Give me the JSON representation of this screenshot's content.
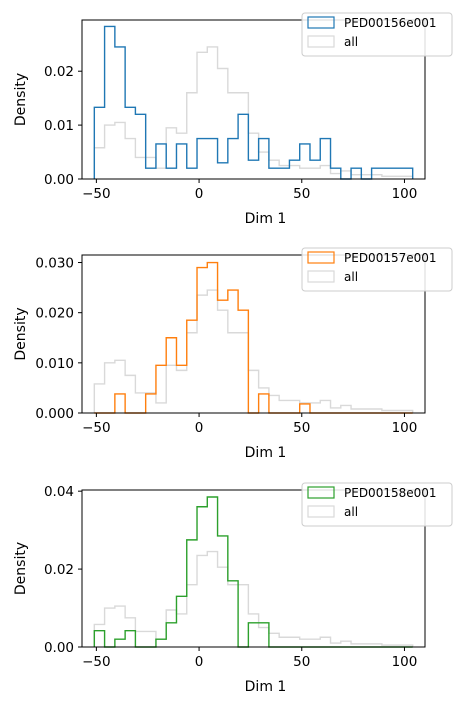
{
  "chart_data": [
    {
      "type": "histogram",
      "xlabel": "Dim 1",
      "ylabel": "Density",
      "xlim": [
        -57,
        110
      ],
      "ylim": [
        0,
        0.0295
      ],
      "xticks": [
        -50,
        0,
        50,
        100
      ],
      "yticks": [
        0.0,
        0.01,
        0.02
      ],
      "ytick_labels": [
        "0.00",
        "0.01",
        "0.02"
      ],
      "legend_loc": "upper-right",
      "series": [
        {
          "name": "PED00156e001",
          "color": "#1f77b4",
          "edges": [
            -51,
            -46,
            -41,
            -36,
            -31,
            -26,
            -21,
            -16,
            -11,
            -6,
            -1,
            4,
            9,
            14,
            19,
            24,
            29,
            34,
            39,
            44,
            49,
            54,
            59,
            64,
            69,
            74,
            79,
            84,
            89,
            94,
            99,
            104
          ],
          "values": [
            0.0133,
            0.0283,
            0.0245,
            0.0133,
            0.012,
            0.002,
            0.0065,
            0.002,
            0.0065,
            0.002,
            0.0075,
            0.0075,
            0.003,
            0.0075,
            0.012,
            0.0035,
            0.0075,
            0.002,
            0.002,
            0.0035,
            0.0065,
            0.0035,
            0.0075,
            0.002,
            0.0,
            0.002,
            0.0,
            0.002,
            0.002,
            0.002,
            0.002
          ]
        },
        {
          "name": "all",
          "color": "#d9d9d9",
          "edges": [
            -51,
            -46,
            -41,
            -36,
            -31,
            -26,
            -21,
            -16,
            -11,
            -6,
            -1,
            4,
            9,
            14,
            19,
            24,
            29,
            34,
            39,
            44,
            49,
            54,
            59,
            64,
            69,
            74,
            79,
            84,
            89,
            94,
            99,
            104
          ],
          "values": [
            0.0058,
            0.01,
            0.0105,
            0.0075,
            0.004,
            0.004,
            0.002,
            0.0095,
            0.0085,
            0.016,
            0.0235,
            0.0245,
            0.0205,
            0.016,
            0.016,
            0.0085,
            0.005,
            0.0035,
            0.0025,
            0.0025,
            0.002,
            0.002,
            0.0025,
            0.001,
            0.0015,
            0.0008,
            0.0008,
            0.0008,
            0.0005,
            0.0005,
            0.0005
          ]
        }
      ]
    },
    {
      "type": "histogram",
      "xlabel": "Dim 1",
      "ylabel": "Density",
      "xlim": [
        -57,
        110
      ],
      "ylim": [
        0,
        0.0315
      ],
      "xticks": [
        -50,
        0,
        50,
        100
      ],
      "yticks": [
        0.0,
        0.01,
        0.02,
        0.03
      ],
      "ytick_labels": [
        "0.000",
        "0.010",
        "0.020",
        "0.030"
      ],
      "legend_loc": "upper-right",
      "series": [
        {
          "name": "PED00157e001",
          "color": "#ff7f0e",
          "edges": [
            -51,
            -46,
            -41,
            -36,
            -31,
            -26,
            -21,
            -16,
            -11,
            -6,
            -1,
            4,
            9,
            14,
            19,
            24,
            29,
            34,
            39,
            44,
            49,
            54,
            59,
            64,
            69,
            74,
            79,
            84,
            89,
            94,
            99,
            104
          ],
          "values": [
            0.0,
            0.0,
            0.0038,
            0.0,
            0.0,
            0.0038,
            0.0095,
            0.015,
            0.0095,
            0.0185,
            0.029,
            0.03,
            0.0225,
            0.0245,
            0.0205,
            0.0,
            0.0038,
            0.0,
            0.0,
            0.0,
            0.0018,
            0.0,
            0.0,
            0.0,
            0.0,
            0.0,
            0.0,
            0.0,
            0.0,
            0.0,
            0.0
          ]
        },
        {
          "name": "all",
          "color": "#d9d9d9",
          "edges": [
            -51,
            -46,
            -41,
            -36,
            -31,
            -26,
            -21,
            -16,
            -11,
            -6,
            -1,
            4,
            9,
            14,
            19,
            24,
            29,
            34,
            39,
            44,
            49,
            54,
            59,
            64,
            69,
            74,
            79,
            84,
            89,
            94,
            99,
            104
          ],
          "values": [
            0.0058,
            0.01,
            0.0105,
            0.0075,
            0.004,
            0.004,
            0.002,
            0.0095,
            0.0085,
            0.016,
            0.0235,
            0.0245,
            0.0205,
            0.016,
            0.016,
            0.0085,
            0.005,
            0.0035,
            0.0025,
            0.0025,
            0.002,
            0.002,
            0.0025,
            0.001,
            0.0015,
            0.0008,
            0.0008,
            0.0008,
            0.0005,
            0.0005,
            0.0005
          ]
        }
      ]
    },
    {
      "type": "histogram",
      "xlabel": "Dim 1",
      "ylabel": "Density",
      "xlim": [
        -57,
        110
      ],
      "ylim": [
        0,
        0.0403
      ],
      "xticks": [
        -50,
        0,
        50,
        100
      ],
      "yticks": [
        0.0,
        0.02,
        0.04
      ],
      "ytick_labels": [
        "0.00",
        "0.02",
        "0.04"
      ],
      "legend_loc": "upper-right",
      "series": [
        {
          "name": "PED00158e001",
          "color": "#2ca02c",
          "edges": [
            -51,
            -46,
            -41,
            -36,
            -31,
            -26,
            -21,
            -16,
            -11,
            -6,
            -1,
            4,
            9,
            14,
            19,
            24,
            29,
            34,
            39,
            44,
            49,
            54,
            59,
            64,
            69,
            74,
            79,
            84,
            89,
            94,
            99,
            104
          ],
          "values": [
            0.0042,
            0.0,
            0.002,
            0.0042,
            0.0,
            0.0,
            0.002,
            0.0062,
            0.013,
            0.0275,
            0.036,
            0.0385,
            0.0285,
            0.017,
            0.0,
            0.0062,
            0.0062,
            0.0,
            0.0,
            0.0,
            0.0,
            0.0,
            0.0,
            0.0,
            0.0,
            0.0,
            0.0,
            0.0,
            0.0,
            0.0,
            0.0
          ]
        },
        {
          "name": "all",
          "color": "#d9d9d9",
          "edges": [
            -51,
            -46,
            -41,
            -36,
            -31,
            -26,
            -21,
            -16,
            -11,
            -6,
            -1,
            4,
            9,
            14,
            19,
            24,
            29,
            34,
            39,
            44,
            49,
            54,
            59,
            64,
            69,
            74,
            79,
            84,
            89,
            94,
            99,
            104
          ],
          "values": [
            0.0058,
            0.01,
            0.0105,
            0.0075,
            0.004,
            0.004,
            0.002,
            0.0095,
            0.0085,
            0.016,
            0.0235,
            0.0245,
            0.0205,
            0.016,
            0.016,
            0.0085,
            0.005,
            0.0035,
            0.0025,
            0.0025,
            0.002,
            0.002,
            0.0025,
            0.001,
            0.0015,
            0.0008,
            0.0008,
            0.0008,
            0.0005,
            0.0005,
            0.0005
          ]
        }
      ]
    }
  ]
}
